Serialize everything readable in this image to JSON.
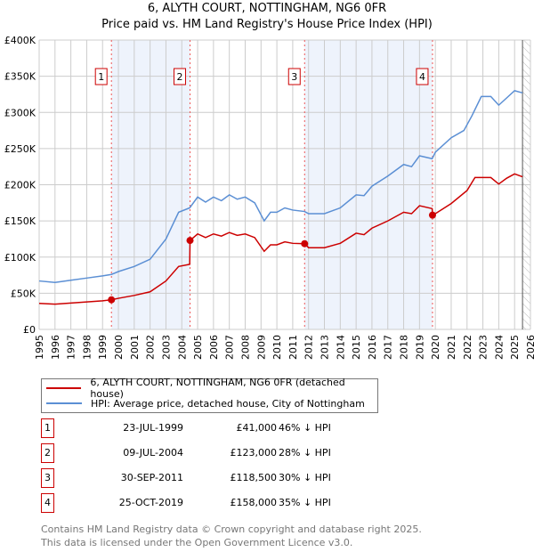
{
  "title": "6, ALYTH COURT, NOTTINGHAM, NG6 0FR",
  "subtitle": "Price paid vs. HM Land Registry's House Price Index (HPI)",
  "colors": {
    "price": "#cc0000",
    "hpi": "#5b8fd4",
    "shade": "#eef3fc"
  },
  "chart_data": {
    "type": "line",
    "xlim": [
      1995,
      2026
    ],
    "ylim": [
      0,
      400000
    ],
    "x_ticks": [
      "1995",
      "1996",
      "1997",
      "1998",
      "1999",
      "2000",
      "2001",
      "2002",
      "2003",
      "2004",
      "2005",
      "2006",
      "2007",
      "2008",
      "2009",
      "2010",
      "2011",
      "2012",
      "2013",
      "2014",
      "2015",
      "2016",
      "2017",
      "2018",
      "2019",
      "2020",
      "2021",
      "2022",
      "2023",
      "2024",
      "2025",
      "2026"
    ],
    "y_ticks": [
      {
        "value": 0,
        "label": "£0"
      },
      {
        "value": 50000,
        "label": "£50K"
      },
      {
        "value": 100000,
        "label": "£100K"
      },
      {
        "value": 150000,
        "label": "£150K"
      },
      {
        "value": 200000,
        "label": "£200K"
      },
      {
        "value": 250000,
        "label": "£250K"
      },
      {
        "value": 300000,
        "label": "£300K"
      },
      {
        "value": 350000,
        "label": "£350K"
      },
      {
        "value": 400000,
        "label": "£400K"
      }
    ],
    "grid": true,
    "forecast_start": 2025.5,
    "shaded_ranges": [
      [
        1999.56,
        2004.52
      ],
      [
        2011.75,
        2019.82
      ]
    ],
    "series": [
      {
        "name": "6, ALYTH COURT, NOTTINGHAM, NG6 0FR (detached house)",
        "color": "#cc0000",
        "x": [
          1995,
          1996,
          1997,
          1998,
          1999,
          1999.56,
          2000,
          2001,
          2002,
          2003,
          2003.8,
          2004.5,
          2004.52,
          2005,
          2005.5,
          2006,
          2006.5,
          2007,
          2007.5,
          2008,
          2008.6,
          2009.2,
          2009.6,
          2010,
          2010.5,
          2011,
          2011.75,
          2012,
          2013,
          2014,
          2015,
          2015.5,
          2016,
          2017,
          2018,
          2018.5,
          2019,
          2019.8,
          2019.82,
          2020,
          2021,
          2022,
          2022.5,
          2023.5,
          2024,
          2024.5,
          2025,
          2025.5
        ],
        "y": [
          36000,
          35000,
          36500,
          38000,
          39500,
          41000,
          43000,
          47000,
          52000,
          67000,
          87000,
          90000,
          123000,
          132000,
          127000,
          132000,
          129000,
          134000,
          130000,
          132000,
          127000,
          108000,
          117000,
          117000,
          121000,
          119000,
          118500,
          113000,
          113000,
          119000,
          133000,
          131000,
          140000,
          150000,
          162000,
          160000,
          171000,
          167000,
          158000,
          160000,
          174000,
          192000,
          210000,
          210000,
          201000,
          209000,
          215000,
          211000
        ]
      },
      {
        "name": "HPI: Average price, detached house, City of Nottingham",
        "color": "#5b8fd4",
        "x": [
          1995,
          1996,
          1997,
          1998,
          1999,
          1999.56,
          2000,
          2001,
          2002,
          2003,
          2003.8,
          2004.5,
          2005,
          2005.5,
          2006,
          2006.5,
          2007,
          2007.5,
          2008,
          2008.6,
          2009.2,
          2009.6,
          2010,
          2010.5,
          2011,
          2011.75,
          2012,
          2013,
          2014,
          2015,
          2015.5,
          2016,
          2017,
          2018,
          2018.5,
          2019,
          2019.8,
          2020,
          2021,
          2021.8,
          2022.3,
          2022.9,
          2023.5,
          2024,
          2024.5,
          2025,
          2025.5
        ],
        "y": [
          67000,
          65000,
          68000,
          71000,
          74000,
          76000,
          80000,
          87000,
          97000,
          125000,
          162000,
          168000,
          183000,
          176000,
          183000,
          178000,
          186000,
          180000,
          183000,
          175000,
          150000,
          162000,
          162000,
          168000,
          165000,
          163000,
          160000,
          160000,
          168000,
          186000,
          185000,
          198000,
          212000,
          228000,
          225000,
          240000,
          236000,
          245000,
          265000,
          275000,
          295000,
          322000,
          322000,
          310000,
          320000,
          330000,
          327000
        ]
      }
    ],
    "sales": [
      {
        "n": "1",
        "x": 1999.56,
        "y": 41000
      },
      {
        "n": "2",
        "x": 2004.52,
        "y": 123000
      },
      {
        "n": "3",
        "x": 2011.75,
        "y": 118500
      },
      {
        "n": "4",
        "x": 2019.82,
        "y": 158000
      }
    ]
  },
  "legend": {
    "price": "6, ALYTH COURT, NOTTINGHAM, NG6 0FR (detached house)",
    "hpi": "HPI: Average price, detached house, City of Nottingham"
  },
  "transactions": [
    {
      "n": "1",
      "date": "23-JUL-1999",
      "price": "£41,000",
      "hpi": "46% ↓ HPI"
    },
    {
      "n": "2",
      "date": "09-JUL-2004",
      "price": "£123,000",
      "hpi": "28% ↓ HPI"
    },
    {
      "n": "3",
      "date": "30-SEP-2011",
      "price": "£118,500",
      "hpi": "30% ↓ HPI"
    },
    {
      "n": "4",
      "date": "25-OCT-2019",
      "price": "£158,000",
      "hpi": "35% ↓ HPI"
    }
  ],
  "footer": {
    "line1": "Contains HM Land Registry data © Crown copyright and database right 2025.",
    "line2": "This data is licensed under the Open Government Licence v3.0."
  }
}
